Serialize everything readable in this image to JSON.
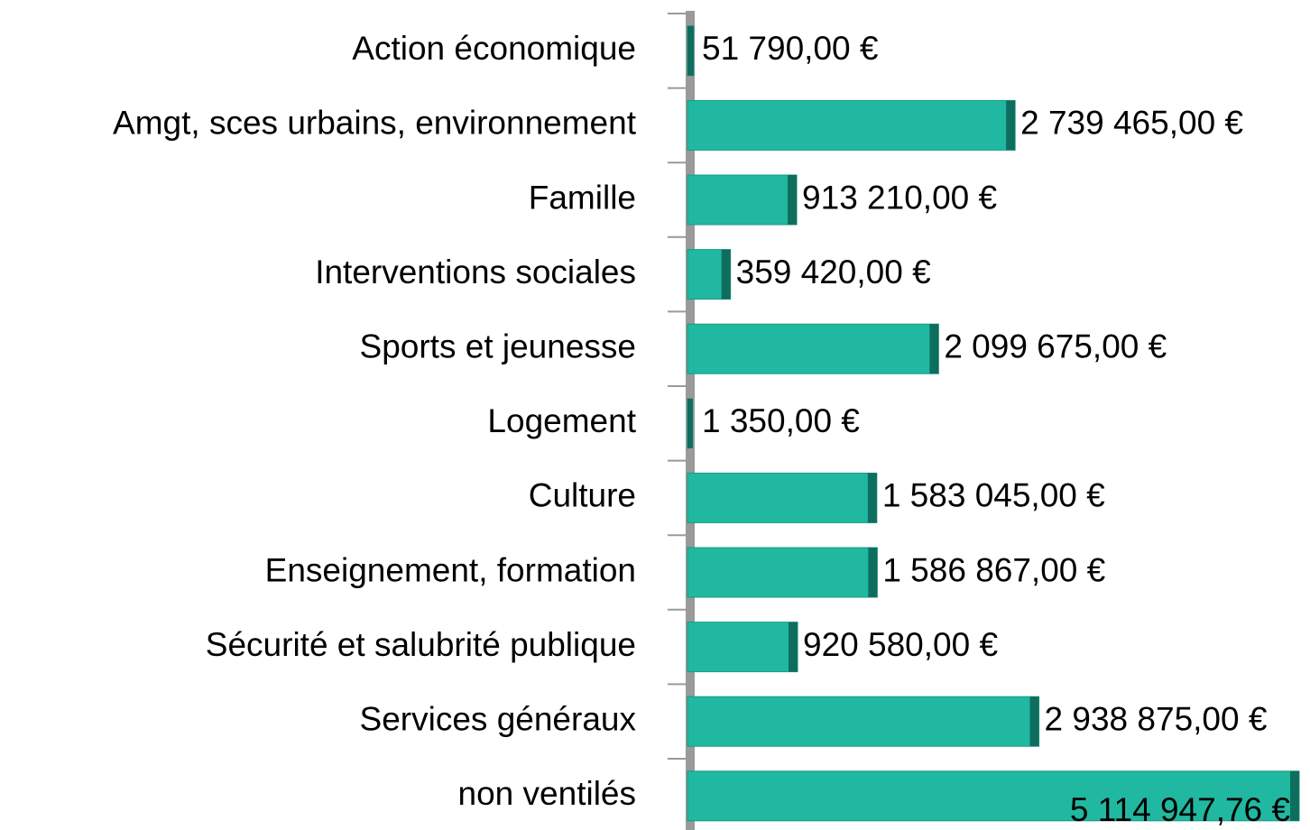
{
  "chart_data": {
    "type": "barh",
    "categories": [
      "Action économique",
      "Amgt, sces urbains, environnement",
      "Famille",
      "Interventions sociales",
      "Sports et jeunesse",
      "Logement",
      "Culture",
      "Enseignement, formation",
      "Sécurité et salubrité publique",
      "Services généraux",
      "non ventilés"
    ],
    "values": [
      51790,
      2739465,
      913210,
      359420,
      2099675,
      1350,
      1583045,
      1586867,
      920580,
      2938875,
      5114947.76
    ],
    "value_labels": [
      "51 790,00 €",
      "2 739 465,00 €",
      "913 210,00 €",
      "359 420,00 €",
      "2 099 675,00 €",
      "1 350,00 €",
      "1 583 045,00 €",
      "1 586 867,00 €",
      "920 580,00 €",
      "2 938 875,00 €",
      "5 114 947,76 €"
    ],
    "color": "#20b8a0"
  }
}
